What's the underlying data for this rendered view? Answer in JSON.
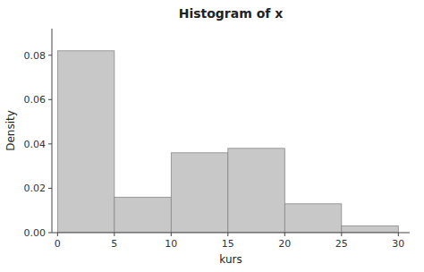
{
  "chart_data": {
    "type": "histogram",
    "title": "Histogram of x",
    "x_label": "kurs",
    "y_label": "Density",
    "bins": [
      0,
      5,
      10,
      15,
      20,
      25,
      30
    ],
    "values": [
      0.082,
      0.016,
      0.036,
      0.038,
      0.013,
      0.003
    ],
    "color": "#c8c8c8",
    "xlim": [
      -0.5,
      31
    ],
    "ylim": [
      0,
      0.092
    ],
    "xticks": [
      0,
      5,
      10,
      15,
      20,
      25,
      30
    ],
    "yticks": [
      {
        "value": 0,
        "label": "0.00"
      },
      0.02,
      0.04,
      0.06,
      0.08
    ],
    "grid": false
  }
}
